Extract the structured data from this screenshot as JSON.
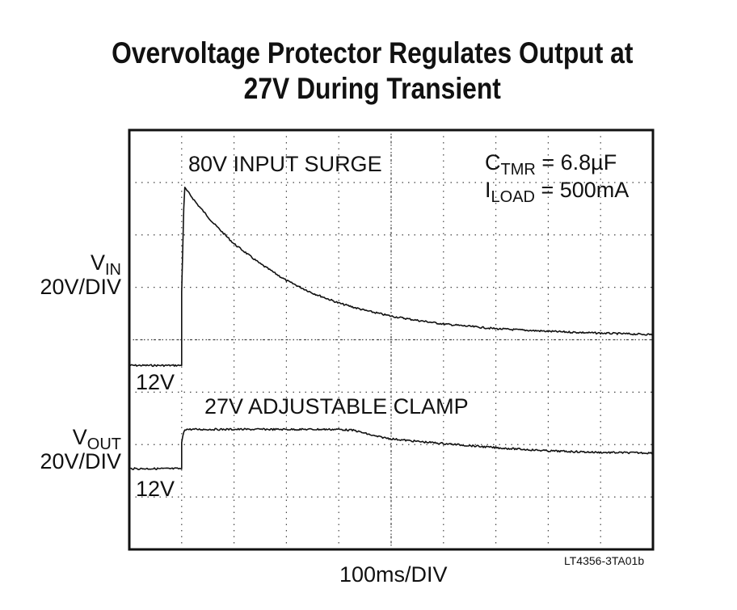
{
  "title_line1": "Overvoltage Protector Regulates Output at",
  "title_line2": "27V During Transient",
  "chart_data": {
    "type": "line",
    "title": "Overvoltage Protector Regulates Output at 27V During Transient",
    "xlabel": "100ms/DIV",
    "x_units": "divisions (100ms/DIV)",
    "xlim": [
      0,
      10
    ],
    "ylim": [
      0,
      8
    ],
    "grid": true,
    "series": [
      {
        "name": "V_IN",
        "scale": "20V/DIV",
        "baseline_label": "12V",
        "peak_label": "80V INPUT SURGE",
        "baseline_div": 3.51,
        "x": [
          0.0,
          1.0,
          1.0,
          1.05,
          1.3,
          1.6,
          2.0,
          2.5,
          3.0,
          3.5,
          4.0,
          4.5,
          5.0,
          5.5,
          6.0,
          7.0,
          8.0,
          9.0,
          10.0
        ],
        "y_volts": [
          12,
          12,
          40,
          80,
          73.5,
          66.4,
          58.4,
          50.8,
          44.4,
          39.6,
          35.8,
          33.0,
          30.8,
          29.2,
          27.8,
          26.0,
          25.0,
          24.3,
          23.8
        ]
      },
      {
        "name": "V_OUT",
        "scale": "20V/DIV",
        "baseline_label": "12V",
        "clamp_label": "27V ADJUSTABLE CLAMP",
        "baseline_div": 1.54,
        "x": [
          0.0,
          1.0,
          1.0,
          1.05,
          2.0,
          3.0,
          4.0,
          4.3,
          4.7,
          5.0,
          5.5,
          6.0,
          7.0,
          8.0,
          9.0,
          10.0
        ],
        "y_volts": [
          12,
          12,
          22,
          27,
          27,
          27,
          27,
          26.6,
          24.4,
          23.4,
          22.4,
          21.6,
          20.0,
          18.8,
          18.2,
          18.0
        ]
      }
    ],
    "annotations": {
      "ctmr": "= 6.8µF",
      "iload": "= 500mA"
    }
  },
  "labels": {
    "surge": "80V INPUT SURGE",
    "clamp": "27V ADJUSTABLE CLAMP",
    "vin_main": "V",
    "vin_sub": "IN",
    "vin_scale": "20V/DIV",
    "vin_base": "12V",
    "vout_main": "V",
    "vout_sub": "OUT",
    "vout_scale": "20V/DIV",
    "vout_base": "12V",
    "ctmr_main": "C",
    "ctmr_sub": "TMR",
    "ctmr_val": " = 6.8µF",
    "iload_main": "I",
    "iload_sub": "LOAD",
    "iload_val": " = 500mA",
    "xlabel": "100ms/DIV",
    "code": "LT4356-3TA01b"
  }
}
